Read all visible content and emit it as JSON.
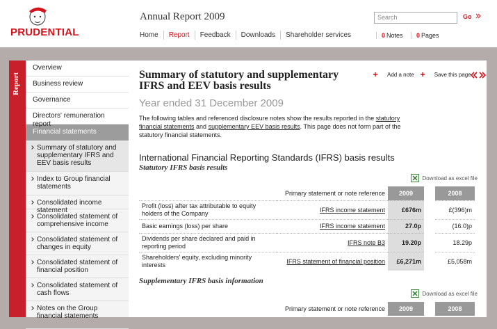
{
  "header": {
    "logo": "PRUDENTIAL",
    "title": "Annual Report 2009",
    "nav": [
      "Home",
      "Report",
      "Feedback",
      "Downloads",
      "Shareholder services"
    ],
    "active_nav": 1,
    "search_placeholder": "Search",
    "go": "Go",
    "notes": {
      "count": 0,
      "label": "Notes"
    },
    "pages": {
      "count": 0,
      "label": "Pages"
    }
  },
  "sidebar": {
    "tab": "Report",
    "items": [
      "Overview",
      "Business review",
      "Governance",
      "Directors' remuneration report"
    ],
    "section": "Financial statements",
    "subitems": [
      "Summary of statutory and supplementary IFRS and EEV basis results",
      "Index to Group financial statements",
      "Consolidated income statement",
      "Consolidated statement of comprehensive income",
      "Consolidated statement of changes in equity",
      "Consolidated statement of financial position",
      "Consolidated statement of cash flows",
      "Notes on the Group financial statements"
    ],
    "active_subitem": 0
  },
  "main": {
    "title": "Summary of statutory and supplementary IFRS and EEV basis results",
    "tools": [
      "Add a note",
      "Save this page"
    ],
    "date": "Year ended 31 December 2009",
    "intro": [
      {
        "text": "The following tables and referenced disclosure notes show the results reported in the "
      },
      {
        "text": "statutory financial statements",
        "link": true
      },
      {
        "text": " and "
      },
      {
        "text": "supplementary EEV basis results",
        "link": true
      },
      {
        "text": ". This page does not form part of the statutory financial statements."
      }
    ],
    "heading": "International Financial Reporting Standards (IFRS) basis results",
    "sections": [
      {
        "subheading": "Statutory IFRS basis results",
        "download": "Download as excel file",
        "columns": [
          "Primary statement or note reference",
          "2009",
          "2008"
        ],
        "rows": [
          [
            "Profit (loss) after tax attributable to equity holders of the Company",
            "IFRS income statement",
            "£676m",
            "£(396)m"
          ],
          [
            "Basic earnings (loss) per share",
            "IFRS income statement",
            "27.0p",
            "(16.0)p"
          ],
          [
            "Dividends per share declared and paid in reporting period",
            "IFRS note B3",
            "19.20p",
            "18.29p"
          ],
          [
            "Shareholders' equity, excluding minority interests",
            "IFRS statement of financial position",
            "£6,271m",
            "£5,058m"
          ]
        ]
      },
      {
        "subheading": "Supplementary IFRS basis information",
        "download": "Download as excel file",
        "columns": [
          "Primary statement or note reference",
          "2009",
          "2008"
        ],
        "rows": []
      }
    ]
  }
}
